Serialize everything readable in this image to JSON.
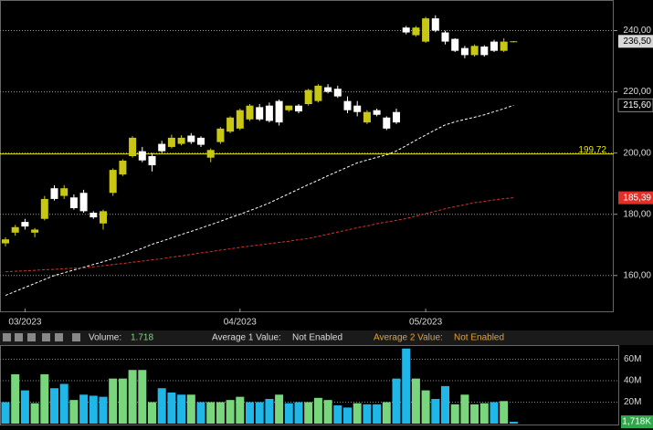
{
  "chart_data": {
    "type": "candlestick",
    "categories": [
      null,
      null,
      "03/2023",
      null,
      null,
      null,
      null,
      null,
      null,
      null,
      null,
      null,
      null,
      null,
      null,
      null,
      null,
      null,
      null,
      null,
      null,
      null,
      null,
      null,
      "04/2023",
      null,
      null,
      null,
      null,
      null,
      null,
      null,
      null,
      null,
      null,
      null,
      null,
      null,
      null,
      null,
      null,
      null,
      null,
      "05/2023",
      null,
      null,
      null,
      null,
      null,
      null,
      null,
      null,
      null
    ],
    "open": [
      170.5,
      174,
      177.5,
      174,
      178.5,
      188.5,
      186,
      185.5,
      187,
      180.5,
      177,
      187,
      193,
      199,
      200.6,
      199,
      203,
      202,
      203,
      205.7,
      205,
      198.5,
      203.6,
      207,
      208,
      211,
      215,
      215.5,
      217,
      214,
      215.5,
      216,
      217,
      221.5,
      221,
      217,
      215.5,
      210,
      214,
      211.6,
      213.4,
      241,
      238.5,
      236.4,
      244,
      239.4,
      237.3,
      234.3,
      232,
      234.8,
      236.4,
      233.4,
      236.3
    ],
    "high": [
      172.5,
      176.5,
      178.5,
      175.5,
      186,
      189.5,
      189.5,
      186.5,
      188,
      181,
      181.5,
      195,
      198,
      205.5,
      202,
      200,
      204,
      206,
      205.8,
      206.5,
      205.5,
      201.5,
      208.5,
      212,
      214.5,
      216,
      216,
      216.5,
      217.5,
      215.5,
      216,
      221,
      222.5,
      222.5,
      222,
      218.5,
      217,
      214,
      214.5,
      212,
      214.5,
      241.5,
      241.5,
      244.5,
      245,
      240,
      237.5,
      235,
      235.5,
      235.2,
      237,
      237.5,
      236.6
    ],
    "low": [
      169.5,
      173,
      175,
      172.5,
      178,
      184.5,
      185,
      181.5,
      180.5,
      178.5,
      175,
      186,
      192.5,
      198.5,
      197,
      194,
      200,
      201.5,
      202.5,
      203,
      202,
      197,
      203,
      206.5,
      207.5,
      210.5,
      210.5,
      210,
      209,
      213.5,
      213,
      215.5,
      216.5,
      219.5,
      218,
      213,
      212,
      209.5,
      212,
      207.5,
      209.5,
      238.8,
      238,
      236,
      239.5,
      235.5,
      233,
      231,
      231.5,
      231.5,
      233,
      233,
      236.2
    ],
    "close": [
      171.8,
      175.8,
      176,
      175,
      185,
      185,
      188.5,
      182,
      181,
      179,
      181,
      194.5,
      197.5,
      205,
      197.6,
      196,
      200.6,
      205,
      205,
      203.6,
      202.7,
      201,
      208,
      211.6,
      214,
      215.5,
      211,
      210.5,
      210,
      215.5,
      213.6,
      220.6,
      222,
      220,
      218.5,
      214,
      213.4,
      213.4,
      212.5,
      208,
      210,
      239.4,
      241,
      244,
      240,
      236.4,
      233.4,
      232,
      235,
      232,
      233.4,
      236.4,
      236.5
    ],
    "up_color": "#c8c814",
    "down_color": "#ffffff",
    "last_price": {
      "value": 236.5,
      "label": "236,50"
    },
    "moving_averages": [
      {
        "color": "#ffffff",
        "last_label": "215,60",
        "values": [
          153.5,
          154.8,
          156.1,
          157.4,
          158.7,
          160,
          160.9,
          161.8,
          162.7,
          163.6,
          164.5,
          165.5,
          166.5,
          167.7,
          168.9,
          170.2,
          171.2,
          172.3,
          173.4,
          174.4,
          175.5,
          176.6,
          177.7,
          178.9,
          180,
          181.2,
          182.4,
          183.7,
          185.2,
          186.7,
          188.2,
          189.7,
          191.1,
          192.6,
          194,
          195.4,
          196.8,
          197.7,
          198.6,
          199.4,
          200.7,
          202.4,
          204.2,
          205.9,
          207.6,
          209.2,
          210.2,
          211,
          211.7,
          212.5,
          213.5,
          214.5,
          215.6
        ]
      },
      {
        "color": "#e0302a",
        "last_label": "185,39",
        "values": [
          161.2,
          161.4,
          161.5,
          161.7,
          161.9,
          162,
          162.2,
          162.4,
          162.5,
          162.8,
          163.2,
          163.6,
          163.9,
          164.3,
          164.7,
          165.1,
          165.5,
          166,
          166.4,
          166.9,
          167.4,
          167.8,
          168.3,
          168.7,
          169.2,
          169.6,
          170,
          170.4,
          170.8,
          171.2,
          171.7,
          172.1,
          172.8,
          173.5,
          174.2,
          174.9,
          175.6,
          176.2,
          176.9,
          177.5,
          178,
          178.6,
          179.4,
          180.2,
          181,
          181.8,
          182.5,
          183.1,
          183.8,
          184.2,
          184.7,
          185.1,
          185.39
        ]
      }
    ],
    "reference_line": {
      "value": 199.72,
      "label": "199,72",
      "color": "#e8e800"
    },
    "ylim": [
      148,
      250
    ],
    "yticks": [
      {
        "value": 160,
        "label": "160,00"
      },
      {
        "value": 180,
        "label": "180,00"
      },
      {
        "value": 200,
        "label": "200,00"
      },
      {
        "value": 220,
        "label": "220,00"
      },
      {
        "value": 240,
        "label": "240,00"
      }
    ],
    "grid": true,
    "volume": {
      "values": [
        20,
        46,
        31,
        19,
        46,
        33,
        37,
        22,
        27,
        26,
        25,
        42,
        42,
        50,
        50,
        20,
        33,
        29,
        27,
        27,
        20,
        20,
        20,
        22,
        25,
        20,
        20,
        23,
        27,
        19,
        20,
        20,
        24,
        22,
        17,
        15,
        19,
        18,
        18,
        20,
        42,
        70,
        42,
        31,
        23,
        35,
        18,
        27,
        18,
        19,
        20,
        21,
        1.718
      ],
      "colors": [
        "#1fb6e8",
        "#79d67c",
        "#1fb6e8",
        "#79d67c",
        "#79d67c",
        "#1fb6e8",
        "#1fb6e8",
        "#79d67c",
        "#1fb6e8",
        "#1fb6e8",
        "#1fb6e8",
        "#79d67c",
        "#79d67c",
        "#79d67c",
        "#79d67c",
        "#79d67c",
        "#1fb6e8",
        "#1fb6e8",
        "#1fb6e8",
        "#79d67c",
        "#1fb6e8",
        "#79d67c",
        "#79d67c",
        "#79d67c",
        "#79d67c",
        "#1fb6e8",
        "#1fb6e8",
        "#1fb6e8",
        "#79d67c",
        "#1fb6e8",
        "#1fb6e8",
        "#79d67c",
        "#79d67c",
        "#79d67c",
        "#1fb6e8",
        "#1fb6e8",
        "#79d67c",
        "#1fb6e8",
        "#1fb6e8",
        "#79d67c",
        "#1fb6e8",
        "#1fb6e8",
        "#79d67c",
        "#79d67c",
        "#1fb6e8",
        "#1fb6e8",
        "#79d67c",
        "#79d67c",
        "#79d67c",
        "#79d67c",
        "#1fb6e8",
        "#79d67c",
        "#1fb6e8"
      ],
      "last_label": "1,718K",
      "ylim": [
        0,
        73.2
      ],
      "yticks": [
        {
          "value": 20,
          "label": "20M"
        },
        {
          "value": 40,
          "label": "40M"
        },
        {
          "value": 60,
          "label": "60M"
        }
      ]
    },
    "toolbar": {
      "volume_label": "Volume:",
      "volume_value": "1.718",
      "avg1_label": "Average 1 Value:",
      "avg1_value": "Not Enabled",
      "avg2_label": "Average 2 Value:",
      "avg2_value": "Not Enabled"
    }
  }
}
